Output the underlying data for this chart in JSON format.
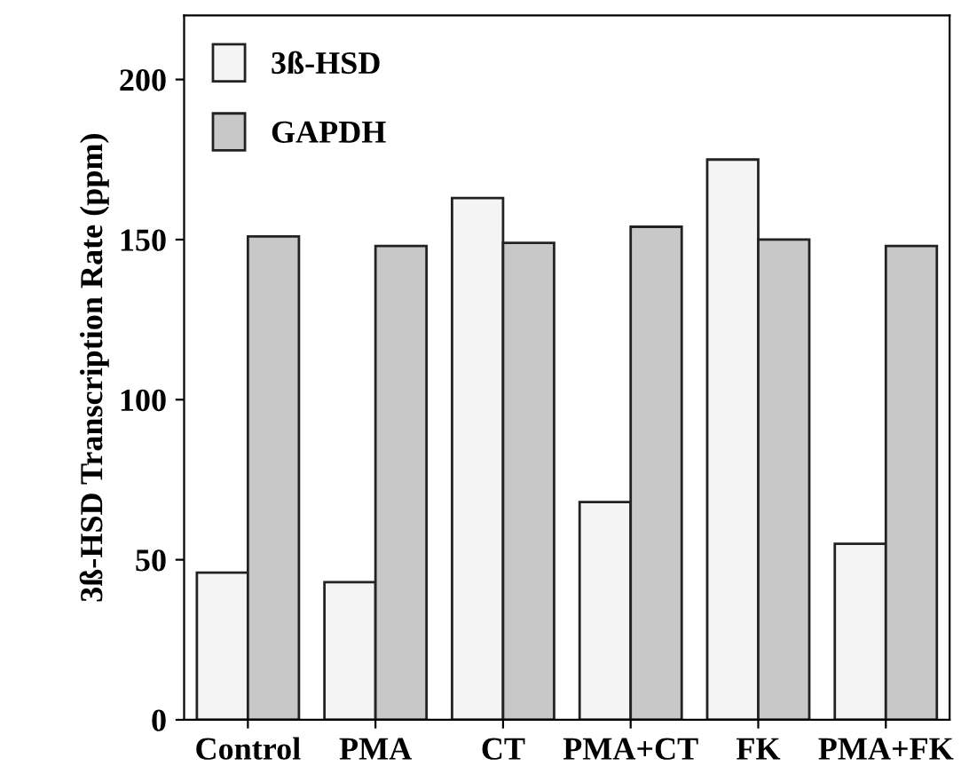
{
  "chart_data": {
    "type": "bar",
    "ylabel": "3ß-HSD Transcription Rate (ppm)",
    "categories": [
      "Control",
      "PMA",
      "CT",
      "PMA+CT",
      "FK",
      "PMA+FK"
    ],
    "series": [
      {
        "name": "3ß-HSD",
        "color": "#f4f4f4",
        "values": [
          46,
          43,
          163,
          68,
          175,
          55
        ]
      },
      {
        "name": "GAPDH",
        "color": "#c8c8c8",
        "values": [
          151,
          148,
          149,
          154,
          150,
          148
        ]
      }
    ],
    "ylim": [
      0,
      220
    ],
    "yticks": [
      0,
      50,
      100,
      150,
      200
    ],
    "grid": false,
    "legend": "top left"
  }
}
